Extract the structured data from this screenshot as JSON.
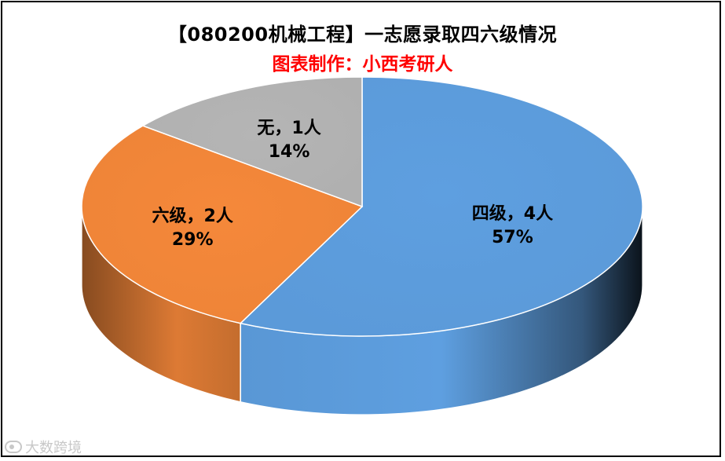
{
  "chart_data": {
    "type": "pie",
    "title": "【080200机械工程】一志愿录取四六级情况",
    "subtitle": "图表制作：小西考研人",
    "slices": [
      {
        "name": "四级",
        "count": "4人",
        "value": 4,
        "percent": "57%",
        "color": "#5e9fe0"
      },
      {
        "name": "六级",
        "count": "2人",
        "value": 2,
        "percent": "29%",
        "color": "#f5883a"
      },
      {
        "name": "无",
        "count": "1人",
        "value": 1,
        "percent": "14%",
        "color": "#b5b5b5"
      }
    ]
  },
  "watermark": {
    "text": "大数跨境"
  }
}
